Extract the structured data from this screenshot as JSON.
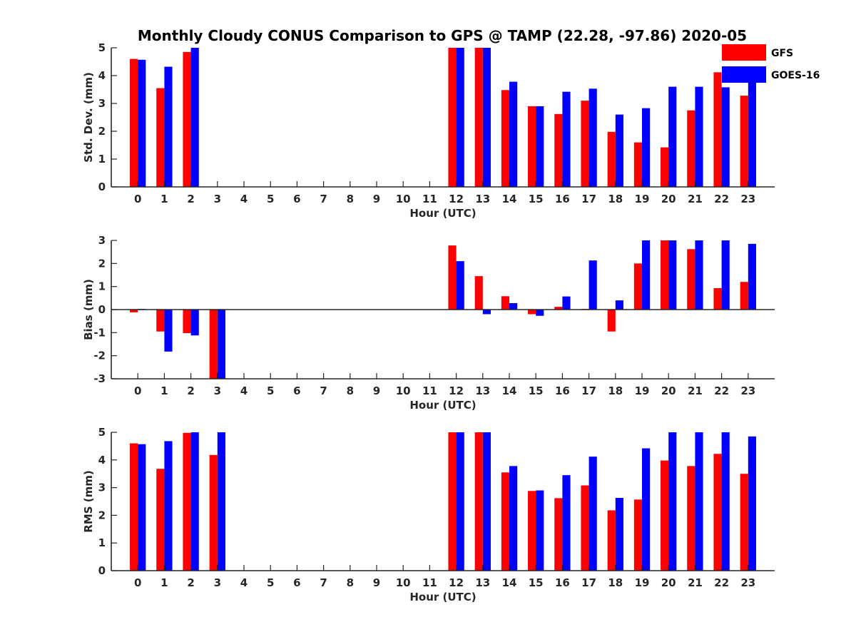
{
  "title": "Monthly Cloudy CONUS Comparison to GPS @ TAMP (22.28, -97.86) 2020-05",
  "colors": {
    "GFS": "#ff0000",
    "GOES-16": "#0000ff",
    "axis": "#262626"
  },
  "legend": {
    "position": "top-right",
    "entries": [
      "GFS",
      "GOES-16"
    ]
  },
  "chart_data": [
    {
      "type": "bar",
      "categories": [
        "0",
        "1",
        "2",
        "3",
        "4",
        "5",
        "6",
        "7",
        "8",
        "9",
        "10",
        "11",
        "12",
        "13",
        "14",
        "15",
        "16",
        "17",
        "18",
        "19",
        "20",
        "21",
        "22",
        "23"
      ],
      "xlabel": "Hour (UTC)",
      "ylabel": "Std. Dev. (mm)",
      "ylim": [
        0,
        5
      ],
      "yticks": [
        "0",
        "1",
        "2",
        "3",
        "4",
        "5"
      ],
      "series": [
        {
          "name": "GFS",
          "values": [
            4.6,
            3.55,
            4.85,
            null,
            null,
            null,
            null,
            null,
            null,
            null,
            null,
            null,
            5,
            5,
            3.48,
            2.9,
            2.62,
            3.1,
            1.98,
            1.6,
            1.42,
            2.75,
            4.12,
            3.28
          ]
        },
        {
          "name": "GOES-16",
          "values": [
            4.57,
            4.32,
            5,
            null,
            null,
            null,
            null,
            null,
            null,
            null,
            null,
            null,
            5,
            5,
            3.78,
            2.9,
            3.42,
            3.53,
            2.6,
            2.83,
            3.6,
            3.6,
            3.58,
            3.9
          ]
        }
      ]
    },
    {
      "type": "bar",
      "categories": [
        "0",
        "1",
        "2",
        "3",
        "4",
        "5",
        "6",
        "7",
        "8",
        "9",
        "10",
        "11",
        "12",
        "13",
        "14",
        "15",
        "16",
        "17",
        "18",
        "19",
        "20",
        "21",
        "22",
        "23"
      ],
      "xlabel": "Hour (UTC)",
      "ylabel": "Bias (mm)",
      "ylim": [
        -3,
        3
      ],
      "yticks": [
        "-3",
        "-2",
        "-1",
        "0",
        "1",
        "2",
        "3"
      ],
      "series": [
        {
          "name": "GFS",
          "values": [
            -0.12,
            -0.95,
            -1.02,
            -3,
            null,
            null,
            null,
            null,
            null,
            null,
            null,
            null,
            2.78,
            1.45,
            0.58,
            -0.2,
            0.12,
            0.03,
            -0.95,
            2.0,
            3,
            2.62,
            0.93,
            1.2
          ]
        },
        {
          "name": "GOES-16",
          "values": [
            0.03,
            -1.82,
            -1.12,
            -3,
            null,
            null,
            null,
            null,
            null,
            null,
            null,
            null,
            2.1,
            -0.2,
            0.28,
            -0.27,
            0.57,
            2.13,
            0.4,
            3,
            3,
            3,
            3,
            2.85
          ]
        }
      ]
    },
    {
      "type": "bar",
      "categories": [
        "0",
        "1",
        "2",
        "3",
        "4",
        "5",
        "6",
        "7",
        "8",
        "9",
        "10",
        "11",
        "12",
        "13",
        "14",
        "15",
        "16",
        "17",
        "18",
        "19",
        "20",
        "21",
        "22",
        "23"
      ],
      "xlabel": "Hour (UTC)",
      "ylabel": "RMS (mm)",
      "ylim": [
        0,
        5
      ],
      "yticks": [
        "0",
        "1",
        "2",
        "3",
        "4",
        "5"
      ],
      "series": [
        {
          "name": "GFS",
          "values": [
            4.6,
            3.68,
            4.98,
            4.18,
            null,
            null,
            null,
            null,
            null,
            null,
            null,
            null,
            5,
            5,
            3.55,
            2.88,
            2.62,
            3.08,
            2.18,
            2.57,
            3.98,
            3.78,
            4.22,
            3.5
          ]
        },
        {
          "name": "GOES-16",
          "values": [
            4.57,
            4.68,
            5,
            5,
            null,
            null,
            null,
            null,
            null,
            null,
            null,
            null,
            5,
            5,
            3.78,
            2.9,
            3.45,
            4.12,
            2.63,
            4.42,
            5,
            5,
            5,
            4.85
          ]
        }
      ]
    }
  ]
}
